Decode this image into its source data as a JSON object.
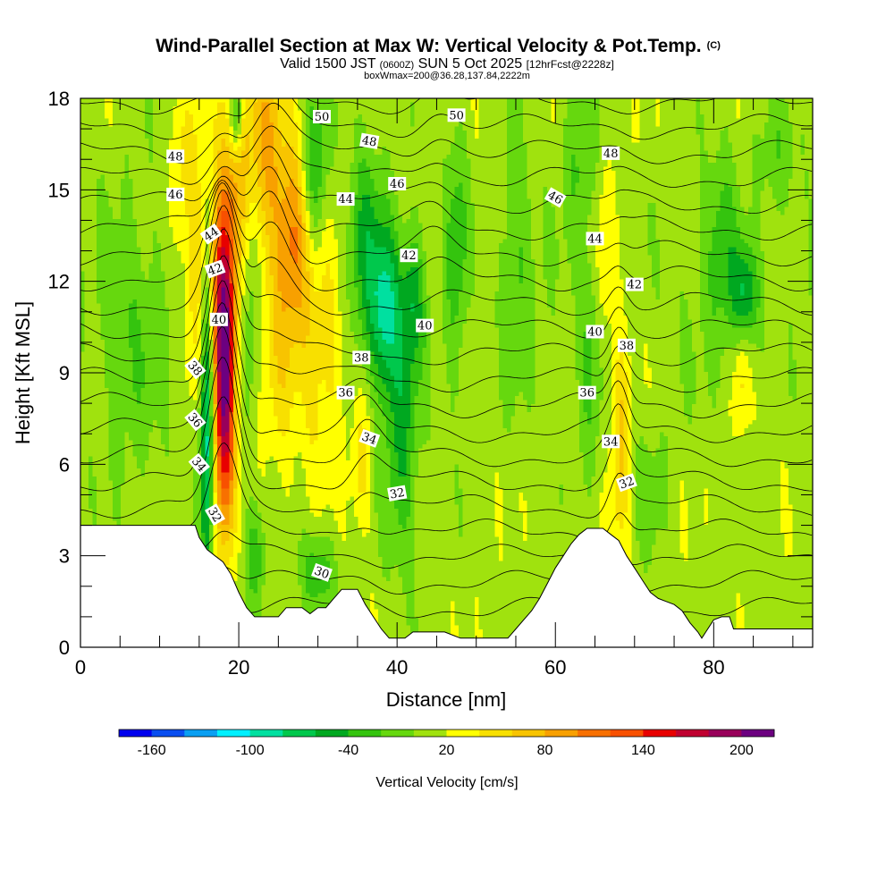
{
  "chart_data": {
    "type": "heatmap",
    "title": "Wind-Parallel Section at Max W: Vertical Velocity & Pot.Temp.",
    "title_mark": "(C)",
    "subtitle_parts": [
      "Valid 1500 JST ",
      "(0600Z)",
      " SUN 5 Oct 2025 ",
      "[12hrFcst@2228z]"
    ],
    "subtitle_line2": "boxWmax=200@36.28,137.84,2222m",
    "xlabel": "Distance [nm]",
    "ylabel": "Height [Kft MSL]",
    "xlim": [
      0,
      92.5
    ],
    "ylim": [
      0,
      18
    ],
    "x_ticks": [
      0,
      20,
      40,
      60,
      80
    ],
    "x_tick_labels": [
      "0",
      "20",
      "40",
      "60",
      "80"
    ],
    "y_ticks": [
      0,
      3,
      6,
      9,
      12,
      15,
      18
    ],
    "y_tick_labels": [
      "0",
      "3",
      "6",
      "9",
      "12",
      "15",
      "18"
    ],
    "colorbar": {
      "label": "Vertical Velocity [cm/s]",
      "levels": [
        -180,
        -160,
        -140,
        -120,
        -100,
        -80,
        -60,
        -40,
        -20,
        0,
        20,
        40,
        60,
        80,
        100,
        120,
        140,
        160,
        180,
        200,
        220
      ],
      "colors": [
        "#0000ee",
        "#0a4ef0",
        "#0a9ff2",
        "#00f0ff",
        "#00e0a0",
        "#00c84c",
        "#00a820",
        "#34c40e",
        "#66d80e",
        "#a0e20e",
        "#ffff00",
        "#f8e000",
        "#f8c400",
        "#f8a000",
        "#f87000",
        "#f85000",
        "#e80000",
        "#c00030",
        "#98005a",
        "#6c0080"
      ],
      "tick_values": [
        -160,
        -100,
        -40,
        20,
        80,
        140,
        200
      ],
      "tick_labels": [
        "-160",
        "-100",
        "-40",
        "20",
        "80",
        "140",
        "200"
      ]
    },
    "terrain": [
      [
        0,
        4.0
      ],
      [
        14.5,
        4.0
      ],
      [
        15,
        3.6
      ],
      [
        16,
        3.2
      ],
      [
        17,
        3.0
      ],
      [
        18,
        2.8
      ],
      [
        19,
        2.4
      ],
      [
        20,
        1.8
      ],
      [
        21,
        1.3
      ],
      [
        22,
        1.0
      ],
      [
        25,
        1.0
      ],
      [
        26,
        1.3
      ],
      [
        28,
        1.3
      ],
      [
        29,
        1.1
      ],
      [
        30,
        1.3
      ],
      [
        31,
        1.3
      ],
      [
        32,
        1.6
      ],
      [
        33,
        1.9
      ],
      [
        35,
        1.9
      ],
      [
        36,
        1.4
      ],
      [
        37,
        1.0
      ],
      [
        38,
        0.6
      ],
      [
        39,
        0.3
      ],
      [
        41,
        0.3
      ],
      [
        42,
        0.5
      ],
      [
        46,
        0.5
      ],
      [
        48,
        0.3
      ],
      [
        54,
        0.3
      ],
      [
        55,
        0.6
      ],
      [
        56,
        0.9
      ],
      [
        57,
        1.2
      ],
      [
        58,
        1.6
      ],
      [
        59,
        2.1
      ],
      [
        60,
        2.6
      ],
      [
        61,
        3.0
      ],
      [
        62,
        3.4
      ],
      [
        63,
        3.7
      ],
      [
        64,
        3.9
      ],
      [
        66,
        3.9
      ],
      [
        67,
        3.7
      ],
      [
        68,
        3.5
      ],
      [
        69,
        3.0
      ],
      [
        70,
        2.6
      ],
      [
        71,
        2.2
      ],
      [
        72,
        1.8
      ],
      [
        73,
        1.6
      ],
      [
        74,
        1.5
      ],
      [
        75,
        1.4
      ],
      [
        76,
        1.2
      ],
      [
        77,
        0.8
      ],
      [
        78,
        0.5
      ],
      [
        78.5,
        0.3
      ],
      [
        79,
        0.5
      ],
      [
        80,
        0.9
      ],
      [
        81,
        1.0
      ],
      [
        82,
        1.0
      ],
      [
        82.5,
        0.6
      ],
      [
        92.5,
        0.6
      ]
    ],
    "updrafts": [
      {
        "x": 18.2,
        "y": 8.0,
        "sx": 0.9,
        "sy": 3.0,
        "amp": 170
      },
      {
        "x": 17.8,
        "y": 11.5,
        "sx": 1.2,
        "sy": 2.5,
        "amp": 90
      },
      {
        "x": 19.5,
        "y": 15.5,
        "sx": 1.6,
        "sy": 3.5,
        "amp": 60
      },
      {
        "x": 14.5,
        "y": 13.0,
        "sx": 1.0,
        "sy": 3.0,
        "amp": 45
      },
      {
        "x": 23.0,
        "y": 16.5,
        "sx": 1.8,
        "sy": 2.5,
        "amp": 70
      },
      {
        "x": 27.0,
        "y": 13.5,
        "sx": 1.6,
        "sy": 2.2,
        "amp": 85
      },
      {
        "x": 25.0,
        "y": 10.0,
        "sx": 1.8,
        "sy": 3.0,
        "amp": 40
      },
      {
        "x": 30.5,
        "y": 9.5,
        "sx": 2.0,
        "sy": 3.0,
        "amp": 40
      },
      {
        "x": 35.5,
        "y": 6.0,
        "sx": 0.9,
        "sy": 1.5,
        "amp": 38
      },
      {
        "x": 68.2,
        "y": 6.5,
        "sx": 0.8,
        "sy": 2.5,
        "amp": 55
      },
      {
        "x": 66.0,
        "y": 12.5,
        "sx": 0.9,
        "sy": 2.2,
        "amp": 30
      },
      {
        "x": 83.5,
        "y": 9.0,
        "sx": 0.7,
        "sy": 1.5,
        "amp": 35
      },
      {
        "x": 12.5,
        "y": 15.5,
        "sx": 0.8,
        "sy": 2.0,
        "amp": 30
      }
    ],
    "downdrafts": [
      {
        "x": 16.0,
        "y": 7.5,
        "sx": 0.6,
        "sy": 3.5,
        "amp": -115
      },
      {
        "x": 19.7,
        "y": 17.5,
        "sx": 0.6,
        "sy": 1.0,
        "amp": -90
      },
      {
        "x": 21.5,
        "y": 13.0,
        "sx": 0.9,
        "sy": 3.0,
        "amp": -45
      },
      {
        "x": 29.5,
        "y": 15.5,
        "sx": 1.2,
        "sy": 2.0,
        "amp": -65
      },
      {
        "x": 38.5,
        "y": 11.0,
        "sx": 1.2,
        "sy": 1.8,
        "amp": -85
      },
      {
        "x": 36.0,
        "y": 13.0,
        "sx": 1.6,
        "sy": 2.5,
        "amp": -55
      },
      {
        "x": 40.5,
        "y": 7.0,
        "sx": 1.5,
        "sy": 3.0,
        "amp": -55
      },
      {
        "x": 42.0,
        "y": 11.5,
        "sx": 1.0,
        "sy": 1.5,
        "amp": -55
      },
      {
        "x": 47.5,
        "y": 13.0,
        "sx": 1.0,
        "sy": 3.0,
        "amp": -45
      },
      {
        "x": 55.0,
        "y": 13.0,
        "sx": 1.4,
        "sy": 3.0,
        "amp": -30
      },
      {
        "x": 84.0,
        "y": 11.5,
        "sx": 1.2,
        "sy": 1.2,
        "amp": -75
      },
      {
        "x": 81.0,
        "y": 13.0,
        "sx": 1.5,
        "sy": 2.5,
        "amp": -40
      },
      {
        "x": 64.5,
        "y": 9.5,
        "sx": 1.0,
        "sy": 3.0,
        "amp": -35
      },
      {
        "x": 22.0,
        "y": 3.0,
        "sx": 1.0,
        "sy": 1.2,
        "amp": -45
      },
      {
        "x": 30.0,
        "y": 2.5,
        "sx": 1.5,
        "sy": 1.0,
        "amp": -50
      },
      {
        "x": 7.0,
        "y": 10.0,
        "sx": 3.5,
        "sy": 3.5,
        "amp": -22
      },
      {
        "x": 88.0,
        "y": 16.0,
        "sx": 2.0,
        "sy": 1.5,
        "amp": -25
      },
      {
        "x": 63.0,
        "y": 16.0,
        "sx": 1.5,
        "sy": 2.0,
        "amp": -30
      },
      {
        "x": 72.0,
        "y": 5.0,
        "sx": 1.5,
        "sy": 1.5,
        "amp": -22
      }
    ],
    "theta_levels": [
      29,
      30,
      31,
      32,
      33,
      34,
      35,
      36,
      37,
      38,
      39,
      40,
      41,
      42,
      43,
      44,
      45,
      46,
      47,
      48,
      49,
      50
    ],
    "theta_labels": [
      {
        "text": "50",
        "x": 30.5,
        "y": 17.4,
        "rot": 0
      },
      {
        "text": "50",
        "x": 47.5,
        "y": 17.45,
        "rot": 0
      },
      {
        "text": "48",
        "x": 12.0,
        "y": 16.1,
        "rot": 0
      },
      {
        "text": "48",
        "x": 36.5,
        "y": 16.6,
        "rot": 10
      },
      {
        "text": "48",
        "x": 67.0,
        "y": 16.2,
        "rot": 0
      },
      {
        "text": "46",
        "x": 12.0,
        "y": 14.85,
        "rot": 0
      },
      {
        "text": "46",
        "x": 40.0,
        "y": 15.2,
        "rot": 0
      },
      {
        "text": "46",
        "x": 60.0,
        "y": 14.75,
        "rot": 30
      },
      {
        "text": "44",
        "x": 16.5,
        "y": 13.55,
        "rot": -35
      },
      {
        "text": "44",
        "x": 33.5,
        "y": 14.7,
        "rot": 0
      },
      {
        "text": "44",
        "x": 65.0,
        "y": 13.4,
        "rot": 0
      },
      {
        "text": "42",
        "x": 17.0,
        "y": 12.4,
        "rot": -20
      },
      {
        "text": "42",
        "x": 41.5,
        "y": 12.85,
        "rot": 0
      },
      {
        "text": "42",
        "x": 70.0,
        "y": 11.9,
        "rot": 0
      },
      {
        "text": "40",
        "x": 17.5,
        "y": 10.75,
        "rot": 0
      },
      {
        "text": "40",
        "x": 43.5,
        "y": 10.55,
        "rot": 0
      },
      {
        "text": "40",
        "x": 65.0,
        "y": 10.35,
        "rot": 0
      },
      {
        "text": "38",
        "x": 14.5,
        "y": 9.15,
        "rot": 50
      },
      {
        "text": "38",
        "x": 35.5,
        "y": 9.5,
        "rot": 0
      },
      {
        "text": "38",
        "x": 69.0,
        "y": 9.9,
        "rot": 0
      },
      {
        "text": "36",
        "x": 14.5,
        "y": 7.45,
        "rot": 50
      },
      {
        "text": "36",
        "x": 33.5,
        "y": 8.35,
        "rot": 0
      },
      {
        "text": "36",
        "x": 64.0,
        "y": 8.35,
        "rot": 0
      },
      {
        "text": "34",
        "x": 15.0,
        "y": 6.0,
        "rot": 50
      },
      {
        "text": "34",
        "x": 36.5,
        "y": 6.85,
        "rot": 20
      },
      {
        "text": "34",
        "x": 67.0,
        "y": 6.75,
        "rot": 0
      },
      {
        "text": "32",
        "x": 17.0,
        "y": 4.35,
        "rot": 60
      },
      {
        "text": "32",
        "x": 40.0,
        "y": 5.05,
        "rot": -10
      },
      {
        "text": "32",
        "x": 69.0,
        "y": 5.4,
        "rot": -20
      },
      {
        "text": "30",
        "x": 30.5,
        "y": 2.45,
        "rot": 20
      }
    ]
  }
}
